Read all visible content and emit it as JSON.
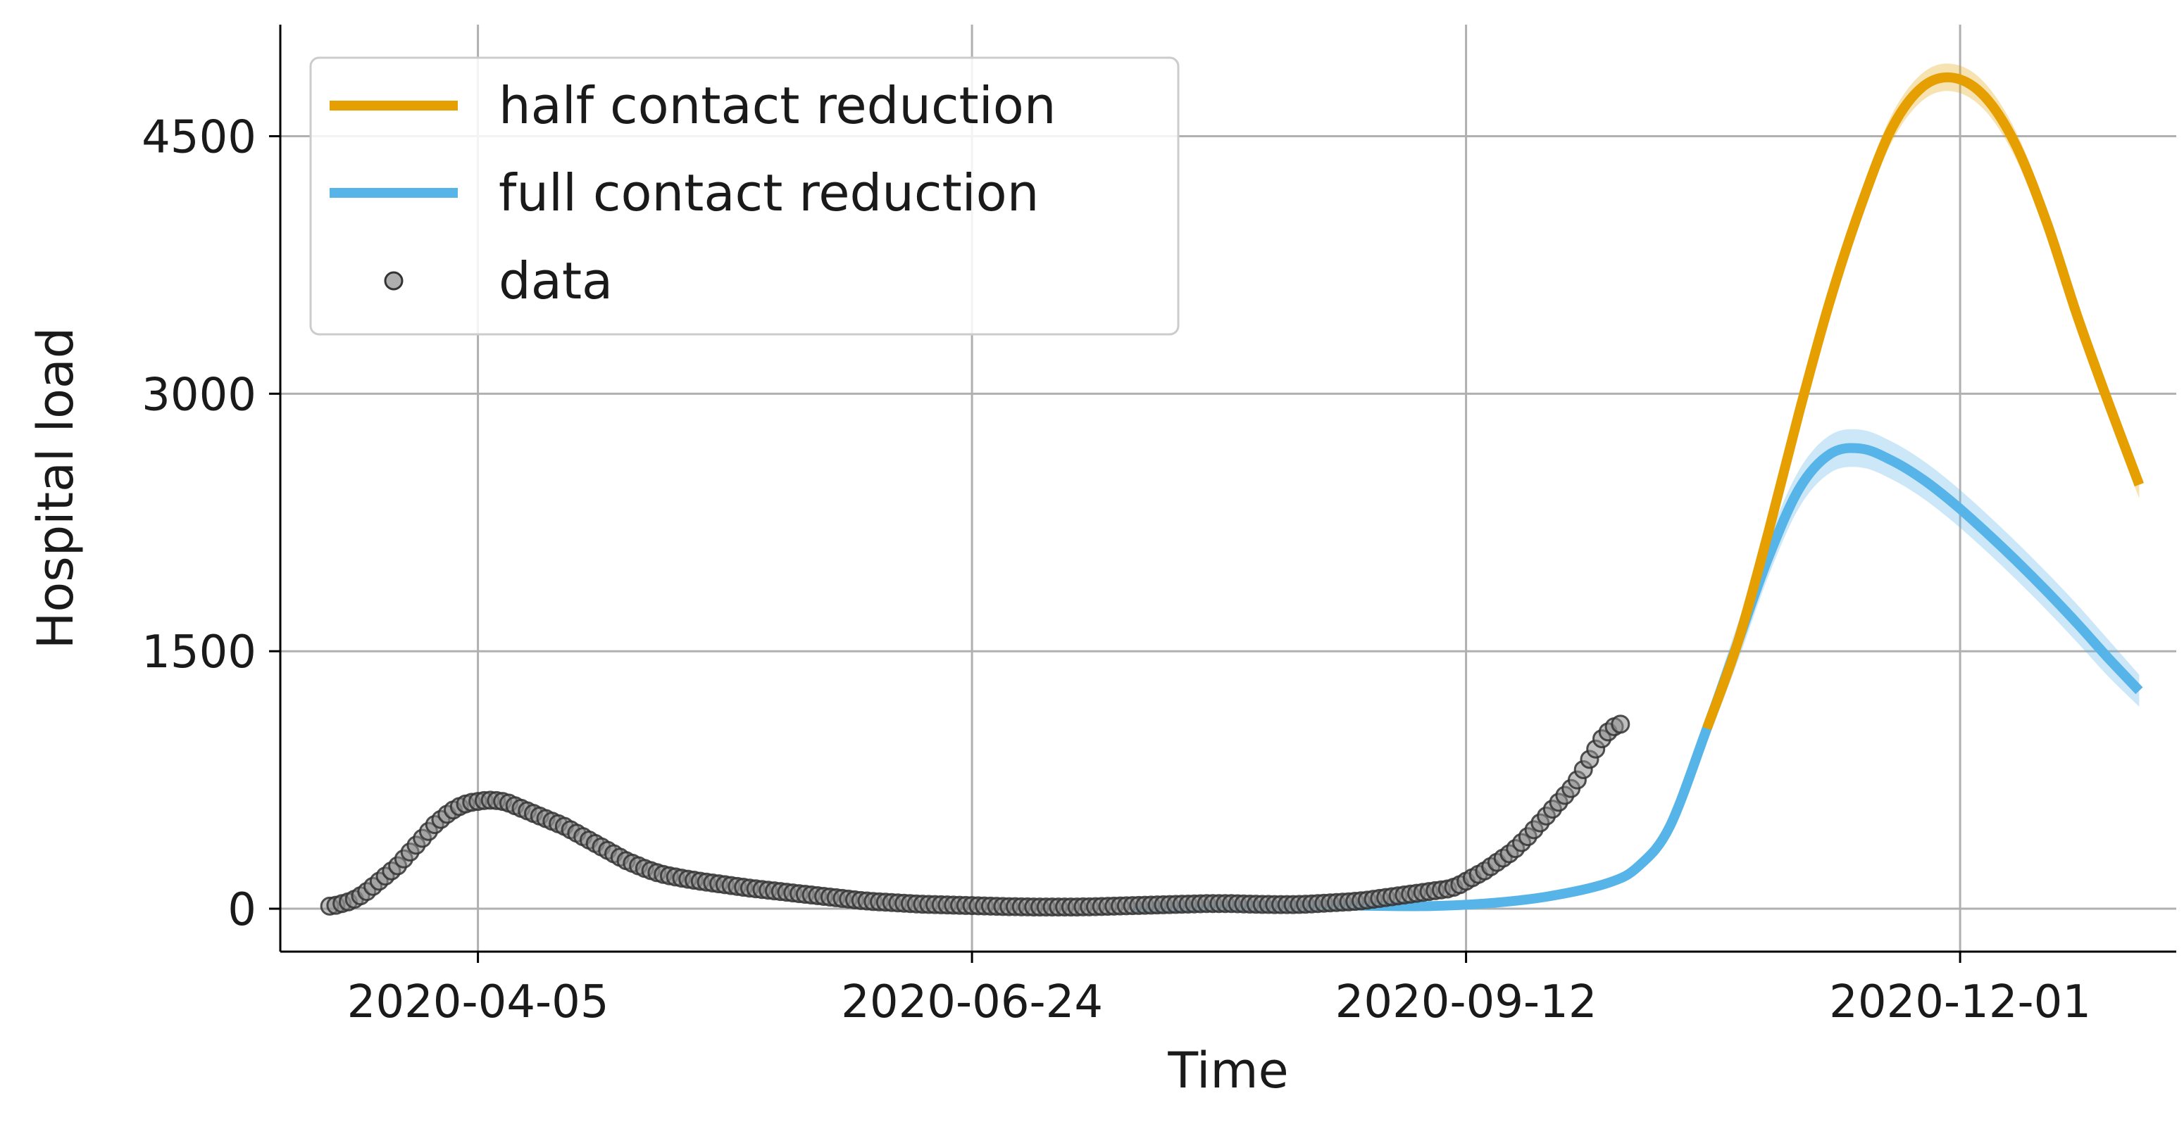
{
  "chart_data": {
    "type": "line",
    "title": "",
    "xlabel": "Time",
    "ylabel": "Hospital load",
    "x_start": "2020-03-12",
    "x_range": [
      "2020-03-04",
      "2021-01-05"
    ],
    "ylim": [
      -250,
      5150
    ],
    "x_ticks": [
      "2020-04-05",
      "2020-06-24",
      "2020-09-12",
      "2020-12-01"
    ],
    "y_ticks": [
      0,
      1500,
      3000,
      4500
    ],
    "grid": true,
    "legend_position": "top-left",
    "colors": {
      "half": "#e69f00",
      "full": "#56b4e9",
      "data_fill": "#8c8c8c",
      "data_edge": "#333333"
    },
    "series": [
      {
        "name": "half contact reduction",
        "kind": "line",
        "points": [
          [
            "2020-10-21",
            1050
          ],
          [
            "2020-10-26",
            1550
          ],
          [
            "2020-10-31",
            2200
          ],
          [
            "2020-11-05",
            2900
          ],
          [
            "2020-11-10",
            3550
          ],
          [
            "2020-11-15",
            4100
          ],
          [
            "2020-11-20",
            4550
          ],
          [
            "2020-11-25",
            4790
          ],
          [
            "2020-11-30",
            4840
          ],
          [
            "2020-12-05",
            4730
          ],
          [
            "2020-12-10",
            4450
          ],
          [
            "2020-12-15",
            4000
          ],
          [
            "2020-12-20",
            3450
          ],
          [
            "2020-12-25",
            2950
          ],
          [
            "2020-12-30",
            2470
          ]
        ],
        "band": 80
      },
      {
        "name": "full contact reduction",
        "kind": "line",
        "points": [
          [
            "2020-07-20",
            5
          ],
          [
            "2020-08-05",
            15
          ],
          [
            "2020-08-20",
            20
          ],
          [
            "2020-09-05",
            15
          ],
          [
            "2020-09-15",
            30
          ],
          [
            "2020-09-25",
            70
          ],
          [
            "2020-10-05",
            150
          ],
          [
            "2020-10-10",
            250
          ],
          [
            "2020-10-15",
            480
          ],
          [
            "2020-10-21",
            1050
          ],
          [
            "2020-10-26",
            1550
          ],
          [
            "2020-10-31",
            2050
          ],
          [
            "2020-11-05",
            2450
          ],
          [
            "2020-11-10",
            2650
          ],
          [
            "2020-11-15",
            2680
          ],
          [
            "2020-11-20",
            2610
          ],
          [
            "2020-11-25",
            2500
          ],
          [
            "2020-11-30",
            2360
          ],
          [
            "2020-12-05",
            2200
          ],
          [
            "2020-12-10",
            2030
          ],
          [
            "2020-12-15",
            1850
          ],
          [
            "2020-12-20",
            1660
          ],
          [
            "2020-12-25",
            1460
          ],
          [
            "2020-12-30",
            1270
          ]
        ],
        "band": 110
      },
      {
        "name": "data",
        "kind": "scatter",
        "x_first": "2020-03-12",
        "x_step_days": 1,
        "values": [
          15,
          20,
          30,
          40,
          55,
          75,
          100,
          130,
          160,
          190,
          220,
          250,
          290,
          330,
          370,
          410,
          450,
          490,
          520,
          550,
          575,
          595,
          610,
          620,
          625,
          630,
          632,
          630,
          625,
          615,
          600,
          585,
          570,
          555,
          540,
          525,
          510,
          495,
          480,
          460,
          440,
          420,
          400,
          380,
          360,
          340,
          320,
          300,
          280,
          265,
          250,
          235,
          222,
          210,
          200,
          192,
          185,
          178,
          172,
          166,
          160,
          155,
          150,
          145,
          140,
          135,
          130,
          125,
          120,
          116,
          112,
          108,
          104,
          100,
          96,
          92,
          88,
          84,
          80,
          76,
          72,
          68,
          64,
          60,
          56,
          52,
          48,
          45,
          42,
          40,
          38,
          36,
          34,
          32,
          30,
          28,
          26,
          25,
          24,
          23,
          22,
          21,
          20,
          19,
          18,
          17,
          16,
          15,
          14,
          13,
          12,
          12,
          11,
          11,
          10,
          10,
          10,
          10,
          10,
          10,
          10,
          10,
          11,
          11,
          12,
          13,
          14,
          15,
          16,
          17,
          18,
          19,
          20,
          21,
          22,
          23,
          24,
          25,
          26,
          27,
          28,
          29,
          30,
          30,
          30,
          30,
          30,
          29,
          28,
          27,
          26,
          25,
          25,
          24,
          24,
          24,
          24,
          25,
          26,
          28,
          30,
          32,
          34,
          36,
          38,
          40,
          43,
          46,
          50,
          55,
          60,
          65,
          70,
          75,
          80,
          85,
          90,
          95,
          100,
          105,
          110,
          115,
          125,
          140,
          160,
          180,
          200,
          220,
          245,
          270,
          295,
          320,
          350,
          385,
          420,
          460,
          500,
          540,
          580,
          620,
          660,
          700,
          750,
          810,
          870,
          930,
          990,
          1030,
          1060,
          1075
        ]
      }
    ]
  }
}
